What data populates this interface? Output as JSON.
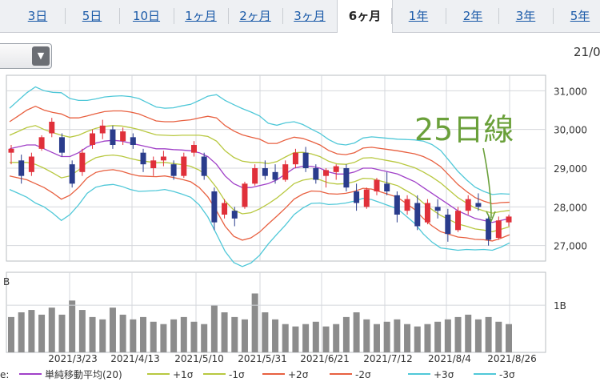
{
  "tabs": [
    "3日",
    "5日",
    "10日",
    "1ヶ月",
    "2ヶ月",
    "3ヶ月",
    "6ヶ月",
    "1年",
    "2年",
    "3年",
    "5年"
  ],
  "active_tab": "6ヶ月",
  "date_range_cut": "21/0",
  "annotation": "25日線",
  "chart_data": {
    "type": "candlestick",
    "period_label": "6ヶ月",
    "x_tick_labels": [
      "2021/3/23",
      "2021/4/13",
      "2021/5/10",
      "2021/5/31",
      "2021/6/21",
      "2021/7/12",
      "2021/8/4",
      "2021/8/26"
    ],
    "y_tick_labels": [
      "31,000",
      "30,000",
      "29,000",
      "28,000",
      "27,000"
    ],
    "ylim": [
      26600,
      31400
    ],
    "volume_axis_label": "1B",
    "volume_unit_label": "B",
    "legend": [
      {
        "label": "単純移動平均(20)",
        "color": "#a040c8"
      },
      {
        "label": "+1σ",
        "color": "#b8c840"
      },
      {
        "label": "-1σ",
        "color": "#b8c840"
      },
      {
        "label": "+2σ",
        "color": "#e86040"
      },
      {
        "label": "-2σ",
        "color": "#e86040"
      },
      {
        "label": "+3σ",
        "color": "#50c8d8"
      },
      {
        "label": "-3σ",
        "color": "#50c8d8"
      }
    ],
    "legend_prefix": "e:",
    "ma_values": [
      29500,
      29550,
      29600,
      29600,
      29500,
      29400,
      29300,
      29300,
      29400,
      29550,
      29650,
      29700,
      29720,
      29700,
      29650,
      29600,
      29550,
      29500,
      29500,
      29480,
      29470,
      29450,
      29400,
      29300,
      29100,
      28800,
      28600,
      28500,
      28500,
      28550,
      28600,
      28700,
      28850,
      29000,
      29050,
      29050,
      29000,
      28900,
      28850,
      28850,
      28900,
      29000,
      29000,
      28950,
      28900,
      28850,
      28750,
      28650,
      28500,
      28350,
      28200,
      28050,
      27900,
      27800,
      27700,
      27650,
      27600,
      27650,
      27700
    ],
    "ma_sd": [
      350,
      400,
      450,
      500,
      500,
      520,
      550,
      500,
      450,
      400,
      380,
      380,
      380,
      390,
      400,
      400,
      380,
      360,
      350,
      360,
      380,
      400,
      450,
      520,
      600,
      650,
      680,
      680,
      650,
      600,
      520,
      470,
      440,
      400,
      360,
      320,
      300,
      280,
      260,
      250,
      250,
      260,
      270,
      280,
      290,
      300,
      330,
      360,
      400,
      420,
      420,
      380,
      340,
      300,
      270,
      250,
      240,
      230,
      210
    ],
    "candles": [
      [
        29400,
        29600,
        29100,
        29500
      ],
      [
        29200,
        29350,
        28600,
        28800
      ],
      [
        28900,
        29400,
        28800,
        29300
      ],
      [
        29500,
        29850,
        29450,
        29800
      ],
      [
        29900,
        30300,
        29800,
        30200
      ],
      [
        29800,
        29900,
        29300,
        29400
      ],
      [
        29100,
        29200,
        28500,
        28600
      ],
      [
        28900,
        29500,
        28800,
        29400
      ],
      [
        29600,
        30000,
        29500,
        29900
      ],
      [
        29900,
        30250,
        29750,
        30100
      ],
      [
        30000,
        30100,
        29500,
        29600
      ],
      [
        29700,
        30050,
        29600,
        29950
      ],
      [
        29800,
        29900,
        29500,
        29600
      ],
      [
        29400,
        29500,
        28900,
        29100
      ],
      [
        29000,
        29300,
        28800,
        29200
      ],
      [
        29200,
        29450,
        29050,
        29300
      ],
      [
        29100,
        29200,
        28700,
        28800
      ],
      [
        28800,
        29400,
        28750,
        29300
      ],
      [
        29400,
        29700,
        29300,
        29600
      ],
      [
        29300,
        29400,
        28700,
        28800
      ],
      [
        28400,
        28500,
        27400,
        27600
      ],
      [
        27800,
        28200,
        27700,
        28100
      ],
      [
        27900,
        28000,
        27500,
        27700
      ],
      [
        28000,
        28650,
        27950,
        28600
      ],
      [
        28600,
        29100,
        28550,
        29000
      ],
      [
        29000,
        29200,
        28700,
        28800
      ],
      [
        28900,
        29100,
        28600,
        28700
      ],
      [
        28700,
        29200,
        28650,
        29100
      ],
      [
        29100,
        29500,
        29000,
        29400
      ],
      [
        29400,
        29550,
        28900,
        29000
      ],
      [
        29000,
        29100,
        28600,
        28700
      ],
      [
        28800,
        29000,
        28500,
        28950
      ],
      [
        28900,
        29100,
        28700,
        29050
      ],
      [
        29000,
        29100,
        28400,
        28500
      ],
      [
        28400,
        28600,
        27900,
        28100
      ],
      [
        28000,
        28500,
        27950,
        28450
      ],
      [
        28400,
        28750,
        28300,
        28700
      ],
      [
        28600,
        28900,
        28300,
        28400
      ],
      [
        28300,
        28400,
        27600,
        27800
      ],
      [
        27900,
        28300,
        27800,
        28200
      ],
      [
        28100,
        28300,
        27400,
        27500
      ],
      [
        27600,
        28200,
        27550,
        28100
      ],
      [
        28000,
        28200,
        27700,
        27900
      ],
      [
        27800,
        27950,
        27100,
        27300
      ],
      [
        27400,
        28000,
        27350,
        27900
      ],
      [
        27900,
        28300,
        27800,
        28200
      ],
      [
        28100,
        28350,
        27900,
        28000
      ],
      [
        27700,
        27800,
        27000,
        27150
      ],
      [
        27200,
        27750,
        27150,
        27650
      ],
      [
        27600,
        27800,
        27500,
        27750
      ]
    ],
    "volumes": [
      0.75,
      0.85,
      0.9,
      0.8,
      0.95,
      0.8,
      1.1,
      0.9,
      0.75,
      0.7,
      0.95,
      0.8,
      0.7,
      0.75,
      0.65,
      0.6,
      0.7,
      0.75,
      0.65,
      0.6,
      1.0,
      0.85,
      0.75,
      0.7,
      1.25,
      0.85,
      0.7,
      0.6,
      0.55,
      0.6,
      0.65,
      0.55,
      0.6,
      0.75,
      0.85,
      0.7,
      0.6,
      0.65,
      0.7,
      0.6,
      0.55,
      0.6,
      0.65,
      0.7,
      0.75,
      0.8,
      0.7,
      0.75,
      0.65,
      0.6
    ],
    "volume_ylim": [
      0,
      1.7
    ]
  }
}
